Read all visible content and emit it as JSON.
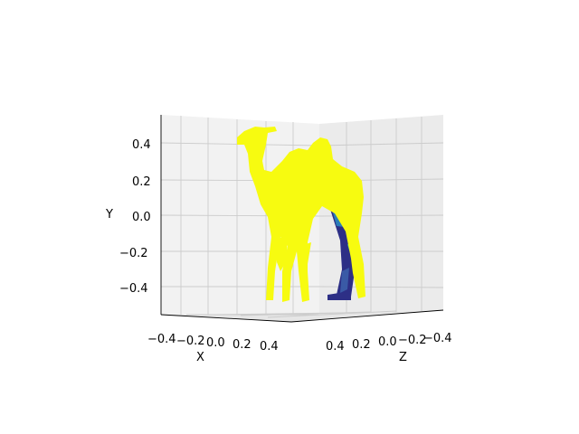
{
  "chart_data": {
    "type": "3d-surface",
    "subject": "camel mesh",
    "view": "3d perspective, nearly side-on",
    "colormap": "viridis",
    "colors": {
      "surface_front": "#f7fb10",
      "surface_dark": "#2d2f86",
      "surface_mid": "#2a7cb8",
      "surface_teal": "#2fb3a5",
      "pane": "#f2f2f2",
      "grid": "#c8c8c8"
    },
    "axes": {
      "x": {
        "label": "X",
        "ticks": [
          "−0.4",
          "−0.2",
          "0.0",
          "0.2",
          "0.4"
        ],
        "range": [
          -0.5,
          0.5
        ]
      },
      "z": {
        "label": "Z",
        "ticks": [
          "0.4",
          "0.2",
          "0.0",
          "−0.2",
          "−0.4"
        ],
        "range": [
          -0.5,
          0.5
        ]
      },
      "y": {
        "label": "Y",
        "ticks": [
          "0.4",
          "0.2",
          "0.0",
          "−0.2",
          "−0.4"
        ],
        "range": [
          -0.55,
          0.55
        ]
      }
    },
    "grid": true,
    "legend": "none"
  }
}
